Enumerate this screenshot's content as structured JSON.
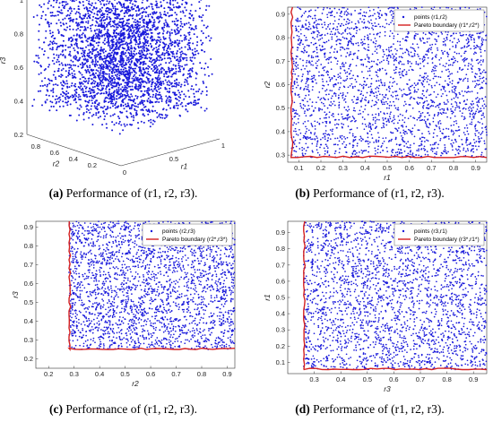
{
  "captions": [
    {
      "letter": "(a)",
      "text": "Performance of (r1, r2, r3)."
    },
    {
      "letter": "(b)",
      "text": "Performance of (r1, r2, r3)."
    },
    {
      "letter": "(c)",
      "text": "Performance of (r1, r2, r3)."
    },
    {
      "letter": "(d)",
      "text": "Performance of (r1, r2, r3)."
    }
  ],
  "colors": {
    "points": "#1a1adb",
    "boundary": "#d42020",
    "axis": "#333333"
  },
  "chart_data": [
    {
      "type": "scatter",
      "projection": "3d",
      "xlabel": "r1",
      "ylabel": "r2",
      "zlabel": "r3",
      "xlim": [
        0.2,
        1
      ],
      "ylim": [
        0.2,
        1
      ],
      "zlim": [
        0.2,
        1
      ],
      "xticks": [
        "0",
        "0.5",
        "1"
      ],
      "yticks": [
        "0.2",
        "0.4",
        "0.6",
        "0.8"
      ],
      "zticks": [
        "0.2",
        "0.4",
        "0.6",
        "0.8",
        "1"
      ],
      "series": [
        {
          "name": "points",
          "marker": "dot",
          "count": 3000
        }
      ]
    },
    {
      "type": "scatter",
      "xlabel": "r1",
      "ylabel": "r2",
      "xlim": [
        0.05,
        0.95
      ],
      "ylim": [
        0.27,
        0.93
      ],
      "xticks": [
        "0.1",
        "0.2",
        "0.3",
        "0.4",
        "0.5",
        "0.6",
        "0.7",
        "0.8",
        "0.9"
      ],
      "yticks": [
        "0.3",
        "0.4",
        "0.5",
        "0.6",
        "0.7",
        "0.8",
        "0.9"
      ],
      "legend": {
        "position": "top-right",
        "points_label": "points (r1,r2)",
        "boundary_label": "Pareto boundary (r1*,r2*)"
      },
      "series": [
        {
          "name": "points (r1,r2)",
          "marker": "dot",
          "count": 2500
        },
        {
          "name": "Pareto boundary (r1*,r2*)",
          "marker": "line",
          "xmin": 0.065,
          "ymin": 0.29
        }
      ]
    },
    {
      "type": "scatter",
      "xlabel": "r2",
      "ylabel": "r3",
      "xlim": [
        0.15,
        0.93
      ],
      "ylim": [
        0.15,
        0.93
      ],
      "xticks": [
        "0.2",
        "0.3",
        "0.4",
        "0.5",
        "0.6",
        "0.7",
        "0.8",
        "0.9"
      ],
      "yticks": [
        "0.2",
        "0.3",
        "0.4",
        "0.5",
        "0.6",
        "0.7",
        "0.8",
        "0.9"
      ],
      "legend": {
        "position": "top-right",
        "points_label": "points (r2,r3)",
        "boundary_label": "Pareto boundary (r2*,r3*)"
      },
      "series": [
        {
          "name": "points (r2,r3)",
          "marker": "dot",
          "count": 2500
        },
        {
          "name": "Pareto boundary (r2*,r3*)",
          "marker": "line",
          "xmin": 0.28,
          "ymin": 0.25
        }
      ]
    },
    {
      "type": "scatter",
      "xlabel": "r3",
      "ylabel": "r1",
      "xlim": [
        0.2,
        0.95
      ],
      "ylim": [
        0.03,
        0.97
      ],
      "xticks": [
        "0.3",
        "0.4",
        "0.5",
        "0.6",
        "0.7",
        "0.8",
        "0.9"
      ],
      "yticks": [
        "0.1",
        "0.2",
        "0.3",
        "0.4",
        "0.5",
        "0.6",
        "0.7",
        "0.8",
        "0.9"
      ],
      "legend": {
        "position": "top-right",
        "points_label": "points (r3,r1)",
        "boundary_label": "Pareto boundary (r3*,r1*)"
      },
      "series": [
        {
          "name": "points (r3,r1)",
          "marker": "dot",
          "count": 2500
        },
        {
          "name": "Pareto boundary (r3*,r1*)",
          "marker": "line",
          "xmin": 0.26,
          "ymin": 0.055
        }
      ]
    }
  ]
}
